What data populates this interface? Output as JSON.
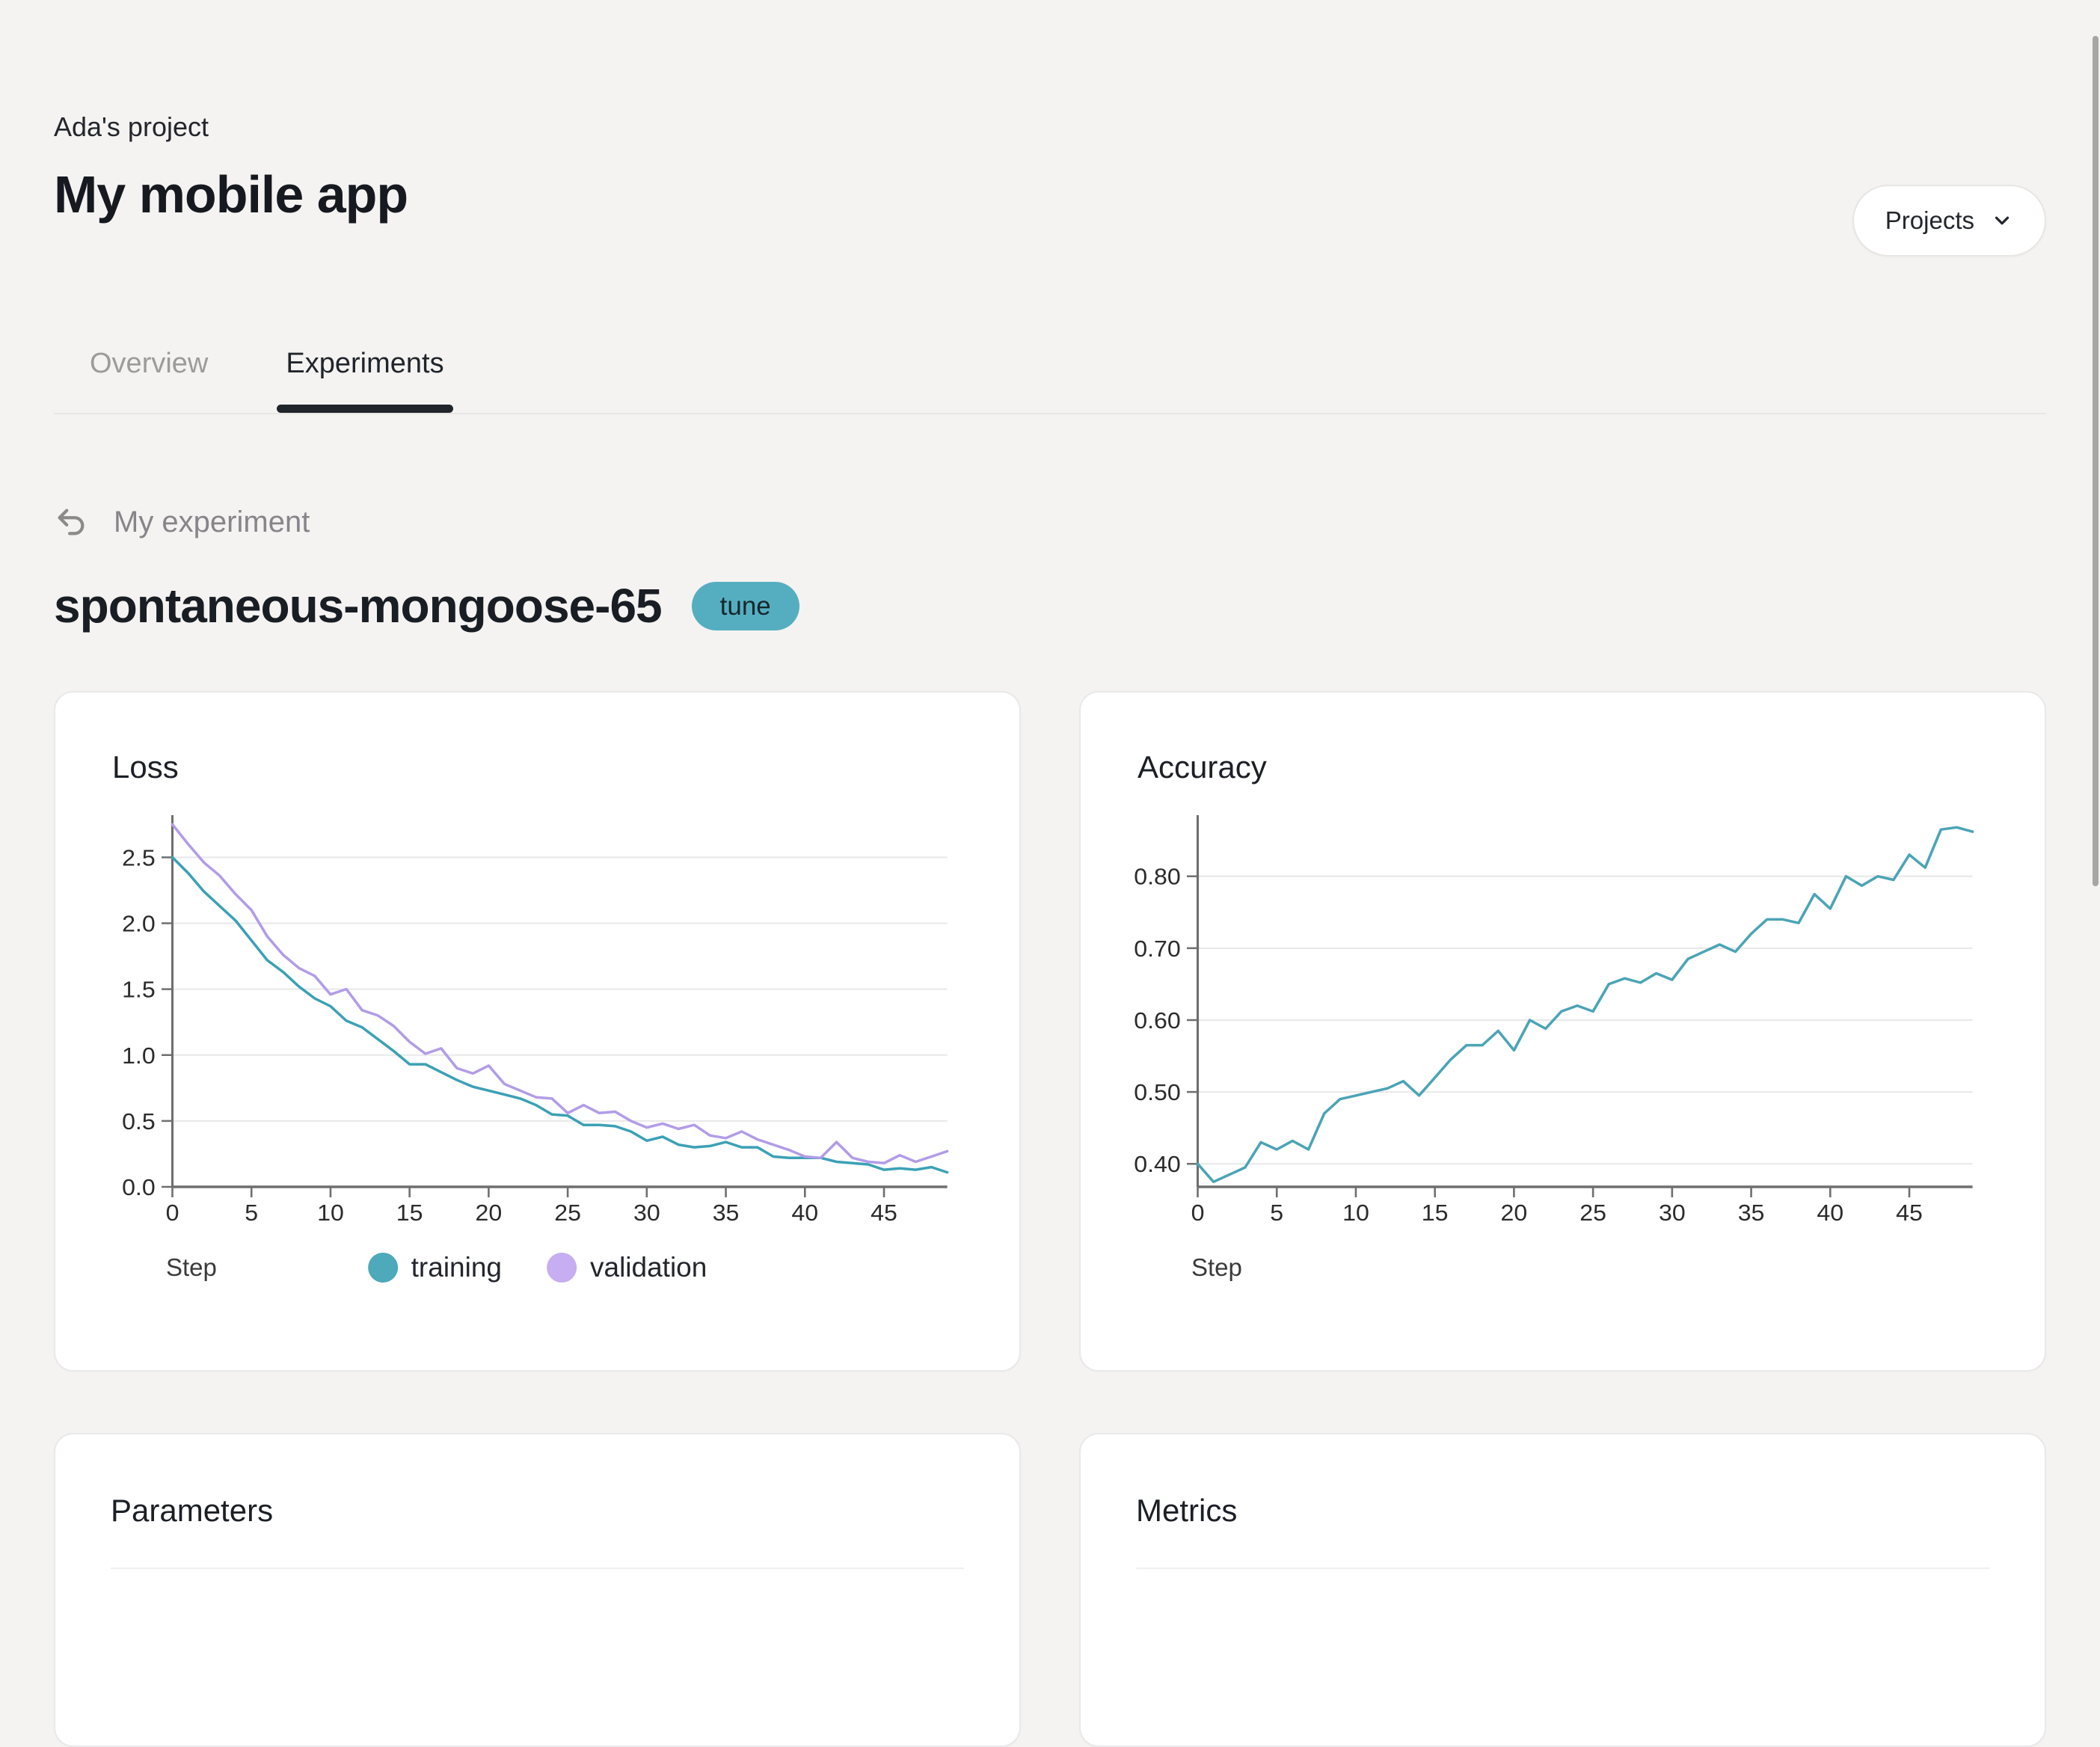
{
  "header": {
    "project_label": "Ada's project",
    "title": "My mobile app",
    "projects_button_label": "Projects"
  },
  "tabs": [
    {
      "label": "Overview",
      "active": false
    },
    {
      "label": "Experiments",
      "active": true
    }
  ],
  "breadcrumb": {
    "label": "My experiment"
  },
  "experiment": {
    "name": "spontaneous-mongoose-65",
    "badge": "tune"
  },
  "section_cards": [
    {
      "title": "Parameters"
    },
    {
      "title": "Metrics"
    }
  ],
  "colors": {
    "background": "#f4f3f1",
    "card": "#ffffff",
    "accent_teal": "#55aec0",
    "training_line": "#3ba1b5",
    "validation_line": "#b29ce8",
    "axis": "#6f6f6f",
    "gridline": "#e8e8e8"
  },
  "chart_data": [
    {
      "type": "line",
      "title": "Loss",
      "xlabel": "Step",
      "x": [
        0,
        1,
        2,
        3,
        4,
        5,
        6,
        7,
        8,
        9,
        10,
        11,
        12,
        13,
        14,
        15,
        16,
        17,
        18,
        19,
        20,
        21,
        22,
        23,
        24,
        25,
        26,
        27,
        28,
        29,
        30,
        31,
        32,
        33,
        34,
        35,
        36,
        37,
        38,
        39,
        40,
        41,
        42,
        43,
        44,
        45,
        46,
        47,
        48,
        49
      ],
      "xlim": [
        0,
        49
      ],
      "xticks": [
        0,
        5,
        10,
        15,
        20,
        25,
        30,
        35,
        40,
        45
      ],
      "ylim": [
        0,
        2.82
      ],
      "yticks": [
        0.0,
        0.5,
        1.0,
        1.5,
        2.0,
        2.5
      ],
      "ytick_decimals": 1,
      "grid": "horizontal",
      "show_legend": true,
      "legend_position": "bottom-center",
      "series": [
        {
          "name": "training",
          "color": "#3ba1b5",
          "legend_color": "#4ea9bb",
          "values": [
            2.5,
            2.38,
            2.24,
            2.13,
            2.02,
            1.87,
            1.72,
            1.63,
            1.52,
            1.43,
            1.37,
            1.26,
            1.21,
            1.12,
            1.03,
            0.93,
            0.93,
            0.87,
            0.81,
            0.76,
            0.73,
            0.7,
            0.67,
            0.62,
            0.55,
            0.54,
            0.47,
            0.47,
            0.46,
            0.42,
            0.35,
            0.38,
            0.32,
            0.3,
            0.31,
            0.34,
            0.3,
            0.3,
            0.23,
            0.22,
            0.22,
            0.22,
            0.19,
            0.18,
            0.17,
            0.13,
            0.14,
            0.13,
            0.15,
            0.11
          ]
        },
        {
          "name": "validation",
          "color": "#b29ce8",
          "legend_color": "#c7adf1",
          "values": [
            2.75,
            2.6,
            2.46,
            2.36,
            2.22,
            2.1,
            1.9,
            1.76,
            1.66,
            1.6,
            1.46,
            1.5,
            1.34,
            1.3,
            1.22,
            1.1,
            1.01,
            1.05,
            0.9,
            0.86,
            0.92,
            0.78,
            0.73,
            0.68,
            0.67,
            0.56,
            0.62,
            0.56,
            0.57,
            0.5,
            0.45,
            0.48,
            0.44,
            0.47,
            0.39,
            0.37,
            0.42,
            0.36,
            0.32,
            0.28,
            0.23,
            0.22,
            0.34,
            0.22,
            0.19,
            0.18,
            0.24,
            0.19,
            0.23,
            0.27
          ]
        }
      ]
    },
    {
      "type": "line",
      "title": "Accuracy",
      "xlabel": "Step",
      "x": [
        0,
        1,
        2,
        3,
        4,
        5,
        6,
        7,
        8,
        9,
        10,
        11,
        12,
        13,
        14,
        15,
        16,
        17,
        18,
        19,
        20,
        21,
        22,
        23,
        24,
        25,
        26,
        27,
        28,
        29,
        30,
        31,
        32,
        33,
        34,
        35,
        36,
        37,
        38,
        39,
        40,
        41,
        42,
        43,
        44,
        45,
        46,
        47,
        48,
        49
      ],
      "xlim": [
        0,
        49
      ],
      "xticks": [
        0,
        5,
        10,
        15,
        20,
        25,
        30,
        35,
        40,
        45
      ],
      "ylim": [
        0.368,
        0.885
      ],
      "yticks": [
        0.4,
        0.5,
        0.6,
        0.7,
        0.8
      ],
      "ytick_decimals": 2,
      "grid": "horizontal",
      "show_legend": false,
      "legend_position": "none",
      "series": [
        {
          "name": "accuracy",
          "color": "#4ba4b6",
          "legend_color": "#4ea9bb",
          "values": [
            0.4,
            0.375,
            0.385,
            0.395,
            0.43,
            0.42,
            0.432,
            0.42,
            0.47,
            0.49,
            0.495,
            0.5,
            0.505,
            0.515,
            0.495,
            0.52,
            0.545,
            0.565,
            0.565,
            0.585,
            0.558,
            0.6,
            0.588,
            0.612,
            0.62,
            0.612,
            0.65,
            0.658,
            0.652,
            0.665,
            0.656,
            0.685,
            0.695,
            0.705,
            0.695,
            0.72,
            0.74,
            0.74,
            0.735,
            0.775,
            0.755,
            0.8,
            0.787,
            0.8,
            0.795,
            0.83,
            0.812,
            0.865,
            0.868,
            0.862
          ]
        }
      ]
    }
  ]
}
